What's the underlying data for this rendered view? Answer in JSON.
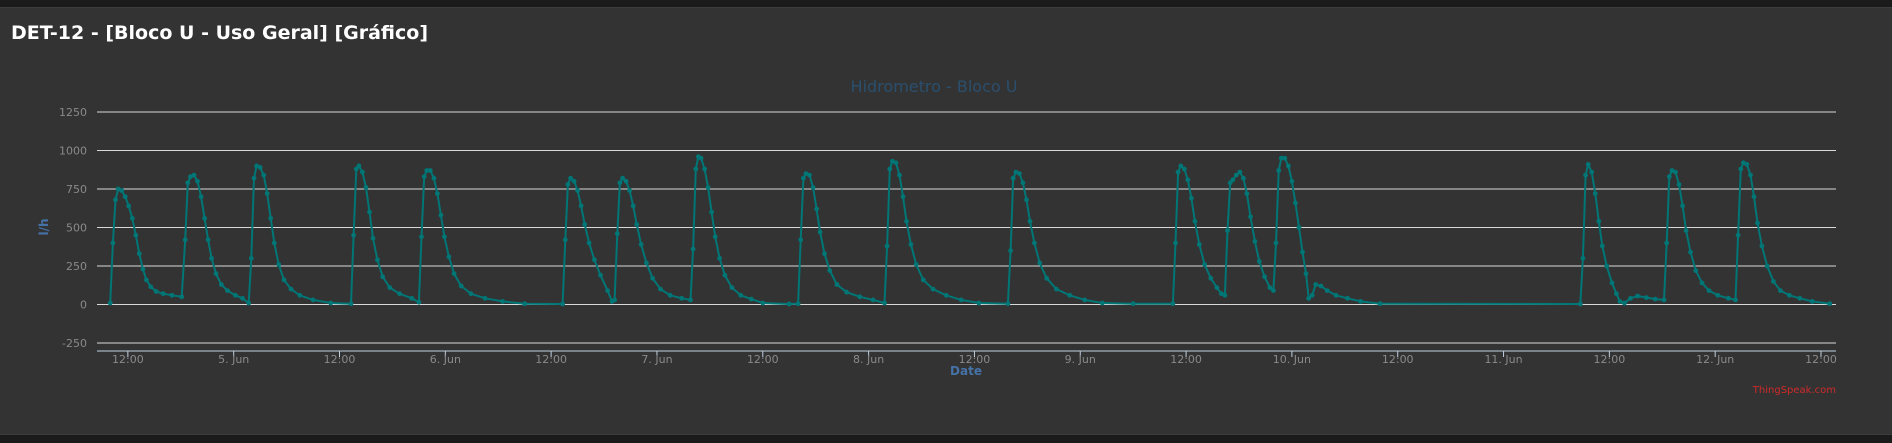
{
  "panel": {
    "title": "DET-12 - [Bloco U - Uso Geral] [Gráfico]"
  },
  "credits": "ThingSpeak.com",
  "colors": {
    "series": "#007676",
    "grid": "#d8d8d8",
    "title": "#2a4f6e",
    "axis_label": "#4572a7"
  },
  "chart_data": {
    "type": "line",
    "title": "Hidrometro - Bloco U",
    "xlabel": "Date",
    "ylabel": "l/h",
    "ylim": [
      -250,
      1250
    ],
    "yticks": [
      -250,
      0,
      250,
      500,
      750,
      1000,
      1250
    ],
    "x_unit": "hours since 4 Jun 00:00",
    "xlim": [
      8.5,
      205.7
    ],
    "xticks": [
      {
        "x": 12,
        "label": "12:00"
      },
      {
        "x": 24,
        "label": "5. Jun"
      },
      {
        "x": 36,
        "label": "12:00"
      },
      {
        "x": 48,
        "label": "6. Jun"
      },
      {
        "x": 60,
        "label": "12:00"
      },
      {
        "x": 72,
        "label": "7. Jun"
      },
      {
        "x": 84,
        "label": "12:00"
      },
      {
        "x": 96,
        "label": "8. Jun"
      },
      {
        "x": 108,
        "label": "12:00"
      },
      {
        "x": 120,
        "label": "9. Jun"
      },
      {
        "x": 132,
        "label": "12:00"
      },
      {
        "x": 144,
        "label": "10. Jun"
      },
      {
        "x": 156,
        "label": "12:00"
      },
      {
        "x": 168,
        "label": "11. Jun"
      },
      {
        "x": 180,
        "label": "12:00"
      },
      {
        "x": 192,
        "label": "12. Jun"
      },
      {
        "x": 204,
        "label": "12:00"
      }
    ],
    "series": [
      {
        "name": "l/h",
        "points": [
          [
            10.0,
            10
          ],
          [
            10.3,
            400
          ],
          [
            10.6,
            680
          ],
          [
            10.9,
            750
          ],
          [
            11.3,
            740
          ],
          [
            11.7,
            700
          ],
          [
            12.1,
            640
          ],
          [
            12.5,
            560
          ],
          [
            12.9,
            450
          ],
          [
            13.3,
            330
          ],
          [
            13.7,
            230
          ],
          [
            14.1,
            160
          ],
          [
            14.6,
            115
          ],
          [
            15.2,
            85
          ],
          [
            16.0,
            70
          ],
          [
            17.0,
            60
          ],
          [
            18.1,
            50
          ],
          [
            18.5,
            420
          ],
          [
            18.8,
            790
          ],
          [
            19.1,
            830
          ],
          [
            19.5,
            840
          ],
          [
            19.9,
            800
          ],
          [
            20.3,
            700
          ],
          [
            20.7,
            560
          ],
          [
            21.1,
            420
          ],
          [
            21.5,
            300
          ],
          [
            22.0,
            200
          ],
          [
            22.6,
            130
          ],
          [
            23.3,
            90
          ],
          [
            24.2,
            60
          ],
          [
            25.0,
            40
          ],
          [
            25.7,
            10
          ],
          [
            26.0,
            300
          ],
          [
            26.3,
            820
          ],
          [
            26.6,
            900
          ],
          [
            27.0,
            890
          ],
          [
            27.4,
            840
          ],
          [
            27.8,
            720
          ],
          [
            28.2,
            560
          ],
          [
            28.6,
            400
          ],
          [
            29.1,
            260
          ],
          [
            29.7,
            160
          ],
          [
            30.5,
            100
          ],
          [
            31.5,
            60
          ],
          [
            33.0,
            30
          ],
          [
            35.0,
            10
          ],
          [
            37.3,
            5
          ],
          [
            37.6,
            450
          ],
          [
            37.9,
            880
          ],
          [
            38.2,
            900
          ],
          [
            38.6,
            860
          ],
          [
            39.0,
            760
          ],
          [
            39.4,
            600
          ],
          [
            39.8,
            430
          ],
          [
            40.3,
            290
          ],
          [
            40.9,
            180
          ],
          [
            41.7,
            110
          ],
          [
            42.8,
            70
          ],
          [
            44.2,
            40
          ],
          [
            45.0,
            15
          ],
          [
            45.3,
            440
          ],
          [
            45.6,
            830
          ],
          [
            45.9,
            870
          ],
          [
            46.3,
            870
          ],
          [
            46.7,
            820
          ],
          [
            47.1,
            720
          ],
          [
            47.5,
            580
          ],
          [
            47.9,
            440
          ],
          [
            48.4,
            310
          ],
          [
            49.0,
            200
          ],
          [
            49.8,
            120
          ],
          [
            50.9,
            70
          ],
          [
            52.5,
            40
          ],
          [
            54.5,
            20
          ],
          [
            57.0,
            5
          ],
          [
            61.3,
            3
          ],
          [
            61.6,
            420
          ],
          [
            61.9,
            780
          ],
          [
            62.2,
            820
          ],
          [
            62.6,
            800
          ],
          [
            63.0,
            740
          ],
          [
            63.4,
            640
          ],
          [
            63.8,
            520
          ],
          [
            64.3,
            400
          ],
          [
            64.9,
            290
          ],
          [
            65.6,
            190
          ],
          [
            66.4,
            90
          ],
          [
            66.9,
            20
          ],
          [
            67.2,
            30
          ],
          [
            67.5,
            460
          ],
          [
            67.8,
            790
          ],
          [
            68.1,
            820
          ],
          [
            68.5,
            800
          ],
          [
            68.9,
            740
          ],
          [
            69.3,
            640
          ],
          [
            69.7,
            520
          ],
          [
            70.2,
            390
          ],
          [
            70.8,
            270
          ],
          [
            71.5,
            170
          ],
          [
            72.4,
            100
          ],
          [
            73.5,
            60
          ],
          [
            74.8,
            40
          ],
          [
            75.8,
            30
          ],
          [
            76.1,
            360
          ],
          [
            76.4,
            880
          ],
          [
            76.7,
            960
          ],
          [
            77.0,
            950
          ],
          [
            77.4,
            880
          ],
          [
            77.8,
            760
          ],
          [
            78.2,
            600
          ],
          [
            78.6,
            440
          ],
          [
            79.1,
            300
          ],
          [
            79.7,
            190
          ],
          [
            80.5,
            110
          ],
          [
            81.5,
            60
          ],
          [
            82.7,
            35
          ],
          [
            84.0,
            10
          ],
          [
            87.0,
            3
          ],
          [
            88.0,
            5
          ],
          [
            88.3,
            420
          ],
          [
            88.6,
            820
          ],
          [
            88.9,
            850
          ],
          [
            89.3,
            840
          ],
          [
            89.7,
            760
          ],
          [
            90.1,
            620
          ],
          [
            90.5,
            470
          ],
          [
            91.0,
            330
          ],
          [
            91.6,
            220
          ],
          [
            92.4,
            130
          ],
          [
            93.5,
            80
          ],
          [
            95.0,
            50
          ],
          [
            96.5,
            30
          ],
          [
            97.8,
            10
          ],
          [
            98.1,
            380
          ],
          [
            98.4,
            880
          ],
          [
            98.7,
            930
          ],
          [
            99.1,
            920
          ],
          [
            99.5,
            840
          ],
          [
            99.9,
            700
          ],
          [
            100.3,
            540
          ],
          [
            100.8,
            390
          ],
          [
            101.4,
            260
          ],
          [
            102.2,
            160
          ],
          [
            103.3,
            100
          ],
          [
            104.8,
            60
          ],
          [
            106.5,
            30
          ],
          [
            108.5,
            10
          ],
          [
            111.8,
            5
          ],
          [
            112.1,
            350
          ],
          [
            112.4,
            820
          ],
          [
            112.7,
            860
          ],
          [
            113.1,
            850
          ],
          [
            113.5,
            790
          ],
          [
            113.9,
            680
          ],
          [
            114.3,
            540
          ],
          [
            114.8,
            400
          ],
          [
            115.4,
            270
          ],
          [
            116.2,
            170
          ],
          [
            117.3,
            100
          ],
          [
            118.8,
            60
          ],
          [
            120.5,
            30
          ],
          [
            122.5,
            10
          ],
          [
            126.0,
            5
          ],
          [
            130.5,
            5
          ],
          [
            130.8,
            400
          ],
          [
            131.1,
            860
          ],
          [
            131.4,
            900
          ],
          [
            131.8,
            880
          ],
          [
            132.2,
            810
          ],
          [
            132.6,
            690
          ],
          [
            133.0,
            540
          ],
          [
            133.5,
            390
          ],
          [
            134.1,
            260
          ],
          [
            134.8,
            170
          ],
          [
            135.5,
            110
          ],
          [
            136.0,
            70
          ],
          [
            136.4,
            60
          ],
          [
            136.7,
            480
          ],
          [
            137.0,
            790
          ],
          [
            137.3,
            810
          ],
          [
            137.7,
            840
          ],
          [
            138.1,
            860
          ],
          [
            138.5,
            820
          ],
          [
            138.9,
            720
          ],
          [
            139.3,
            570
          ],
          [
            139.8,
            410
          ],
          [
            140.3,
            280
          ],
          [
            140.9,
            180
          ],
          [
            141.5,
            110
          ],
          [
            141.9,
            90
          ],
          [
            142.2,
            400
          ],
          [
            142.5,
            870
          ],
          [
            142.8,
            950
          ],
          [
            143.2,
            950
          ],
          [
            143.6,
            900
          ],
          [
            144.0,
            800
          ],
          [
            144.4,
            660
          ],
          [
            144.8,
            500
          ],
          [
            145.2,
            340
          ],
          [
            145.6,
            200
          ],
          [
            145.9,
            40
          ],
          [
            146.3,
            60
          ],
          [
            146.7,
            130
          ],
          [
            147.3,
            120
          ],
          [
            148.0,
            90
          ],
          [
            149.0,
            60
          ],
          [
            150.3,
            40
          ],
          [
            151.8,
            20
          ],
          [
            154.0,
            5
          ],
          [
            176.7,
            3
          ],
          [
            177.0,
            300
          ],
          [
            177.3,
            840
          ],
          [
            177.6,
            910
          ],
          [
            178.0,
            860
          ],
          [
            178.4,
            720
          ],
          [
            178.8,
            540
          ],
          [
            179.2,
            380
          ],
          [
            179.7,
            250
          ],
          [
            180.3,
            140
          ],
          [
            180.8,
            70
          ],
          [
            181.2,
            20
          ],
          [
            181.7,
            10
          ],
          [
            182.4,
            40
          ],
          [
            183.2,
            55
          ],
          [
            184.2,
            45
          ],
          [
            185.2,
            35
          ],
          [
            186.2,
            30
          ],
          [
            186.5,
            400
          ],
          [
            186.8,
            830
          ],
          [
            187.1,
            870
          ],
          [
            187.5,
            860
          ],
          [
            187.9,
            780
          ],
          [
            188.3,
            640
          ],
          [
            188.7,
            480
          ],
          [
            189.2,
            340
          ],
          [
            189.8,
            220
          ],
          [
            190.5,
            140
          ],
          [
            191.3,
            90
          ],
          [
            192.3,
            60
          ],
          [
            193.5,
            40
          ],
          [
            194.3,
            30
          ],
          [
            194.6,
            450
          ],
          [
            194.9,
            880
          ],
          [
            195.2,
            920
          ],
          [
            195.6,
            910
          ],
          [
            196.0,
            840
          ],
          [
            196.4,
            700
          ],
          [
            196.8,
            530
          ],
          [
            197.3,
            380
          ],
          [
            197.9,
            250
          ],
          [
            198.6,
            150
          ],
          [
            199.4,
            90
          ],
          [
            200.4,
            60
          ],
          [
            201.6,
            40
          ],
          [
            203.0,
            20
          ],
          [
            205.0,
            5
          ]
        ]
      }
    ]
  }
}
